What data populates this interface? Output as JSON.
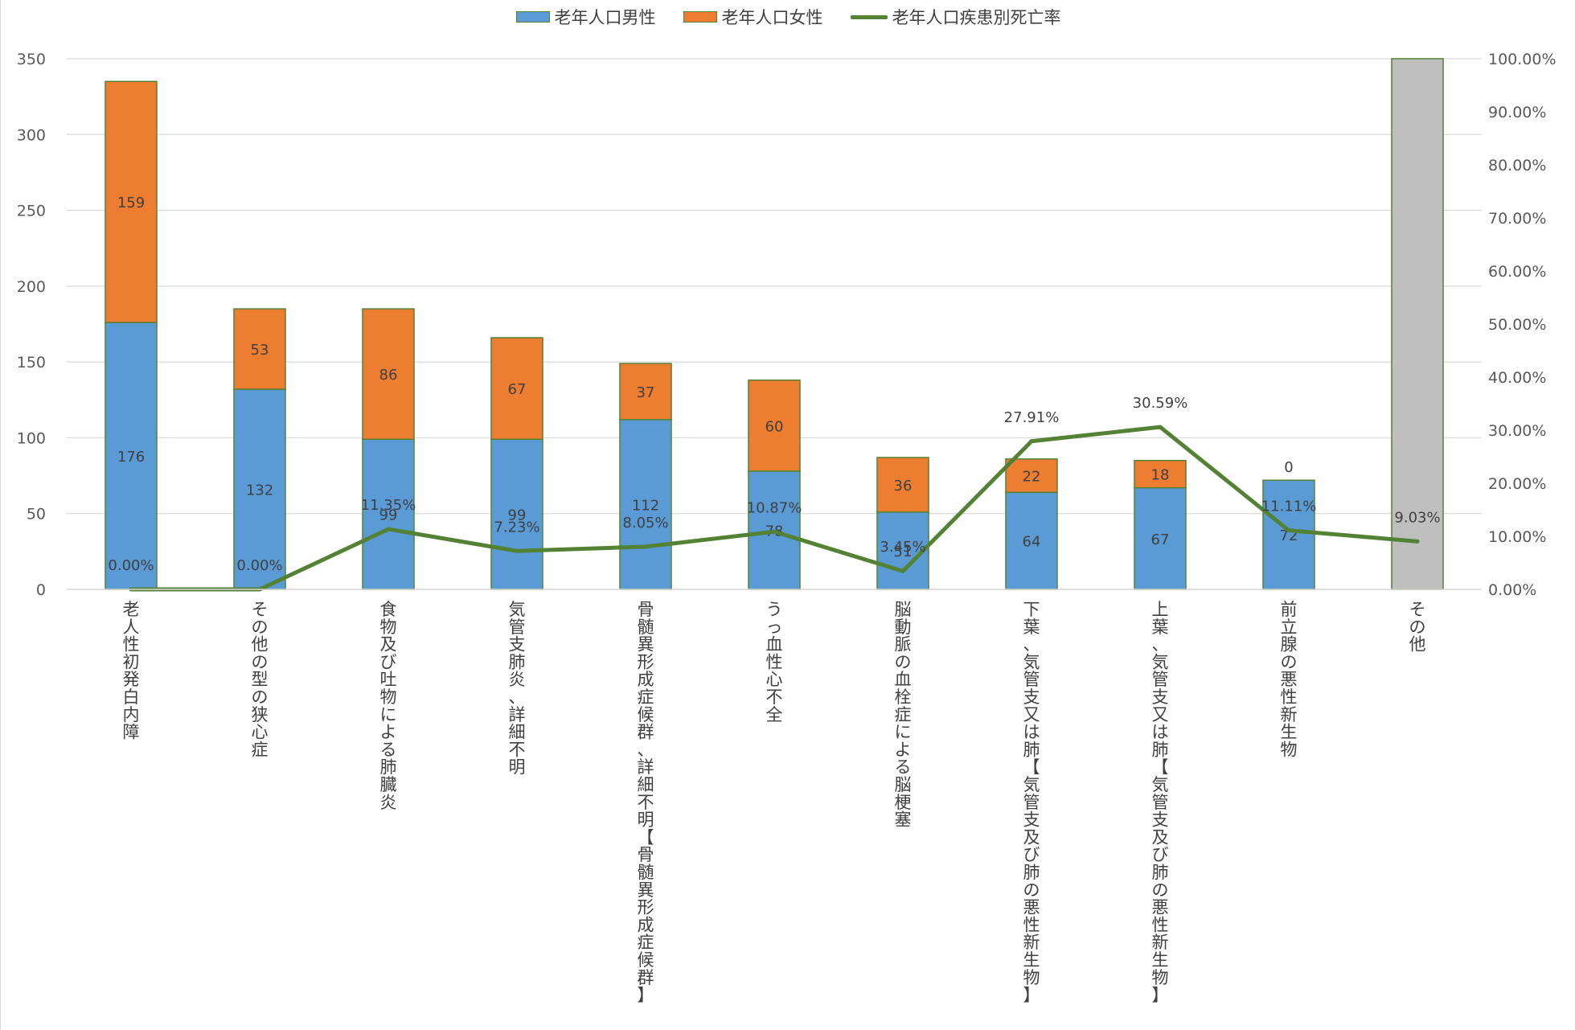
{
  "colors": {
    "male": "#5b9bd5",
    "female": "#ed7d31",
    "rate_line": "#548235",
    "other_bar": "#bfbfbf",
    "bar_border": "#548235",
    "grid": "#d9d9d9"
  },
  "legend": {
    "male": "老年人口男性",
    "female": "老年人口女性",
    "rate": "老年人口疾患別死亡率"
  },
  "chart_data": {
    "type": "bar",
    "stacked": true,
    "categories": [
      "老人性初発白内障",
      "その他の型の狭心症",
      "食物及び吐物による肺臓炎",
      "気管支肺炎、詳細不明",
      "骨髄異形成症候群、詳細不明【骨髄異形成症候群】",
      "うっ血性心不全",
      "脳動脈の血栓症による脳梗塞",
      "下葉、気管支又は肺【気管支及び肺の悪性新生物】",
      "上葉、気管支又は肺【気管支及び肺の悪性新生物】",
      "前立腺の悪性新生物",
      "その他"
    ],
    "series": [
      {
        "name": "老年人口男性",
        "type": "bar",
        "axis": "left",
        "values": [
          176,
          132,
          99,
          99,
          112,
          78,
          51,
          64,
          67,
          72,
          350
        ],
        "labels": [
          "176",
          "132",
          "99",
          "99",
          "112",
          "78",
          "51",
          "64",
          "67",
          "72",
          ""
        ]
      },
      {
        "name": "老年人口女性",
        "type": "bar",
        "axis": "left",
        "values": [
          159,
          53,
          86,
          67,
          37,
          60,
          36,
          22,
          18,
          0,
          0
        ],
        "labels": [
          "159",
          "53",
          "86",
          "67",
          "37",
          "60",
          "36",
          "22",
          "18",
          "0",
          ""
        ]
      },
      {
        "name": "老年人口疾患別死亡率",
        "type": "line",
        "axis": "right",
        "values": [
          0.0,
          0.0,
          11.35,
          7.23,
          8.05,
          10.87,
          3.45,
          27.91,
          30.59,
          11.11,
          9.03
        ],
        "labels": [
          "0.00%",
          "0.00%",
          "11.35%",
          "7.23%",
          "8.05%",
          "10.87%",
          "3.45%",
          "27.91%",
          "30.59%",
          "11.11%",
          "9.03%"
        ]
      }
    ],
    "y_left": {
      "min": 0,
      "max": 350,
      "ticks": [
        "0",
        "50",
        "100",
        "150",
        "200",
        "250",
        "300",
        "350"
      ]
    },
    "y_right": {
      "min": 0,
      "max": 100,
      "ticks": [
        "0.00%",
        "10.00%",
        "20.00%",
        "30.00%",
        "40.00%",
        "50.00%",
        "60.00%",
        "70.00%",
        "80.00%",
        "90.00%",
        "100.00%"
      ]
    },
    "grid": true,
    "legend_position": "top"
  }
}
